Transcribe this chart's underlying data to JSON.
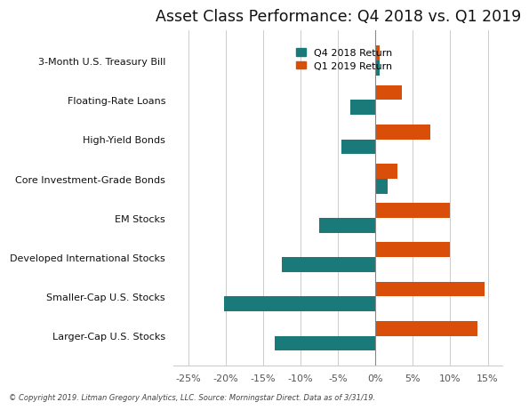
{
  "title": "Asset Class Performance: Q4 2018 vs. Q1 2019",
  "categories": [
    "3-Month U.S. Treasury Bill",
    "Floating-Rate Loans",
    "High-Yield Bonds",
    "Core Investment-Grade Bonds",
    "EM Stocks",
    "Developed International Stocks",
    "Smaller-Cap U.S. Stocks",
    "Larger-Cap U.S. Stocks"
  ],
  "q4_2018": [
    0.57,
    -3.4,
    -4.6,
    1.64,
    -7.5,
    -12.5,
    -20.2,
    -13.5
  ],
  "q1_2019": [
    0.6,
    3.5,
    7.3,
    2.9,
    9.9,
    10.0,
    14.6,
    13.6
  ],
  "color_q4": "#1a7a7a",
  "color_q1": "#d94f0a",
  "legend_q4": "Q4 2018 Return",
  "legend_q1": "Q1 2019 Return",
  "xlim": [
    -27,
    17
  ],
  "xticks": [
    -25,
    -20,
    -15,
    -10,
    -5,
    0,
    5,
    10,
    15
  ],
  "xtick_labels": [
    "-25%",
    "-20%",
    "-15%",
    "-10%",
    "-5%",
    "0%",
    "5%",
    "10%",
    "15%"
  ],
  "footnote": "© Copyright 2019. Litman Gregory Analytics, LLC. Source: Morningstar Direct. Data as of 3/31/19.",
  "bar_height": 0.38,
  "background_color": "#ffffff",
  "grid_color": "#cccccc",
  "zero_line_color": "#888888",
  "label_fontsize": 8.0,
  "title_fontsize": 12.5,
  "legend_fontsize": 8.0
}
